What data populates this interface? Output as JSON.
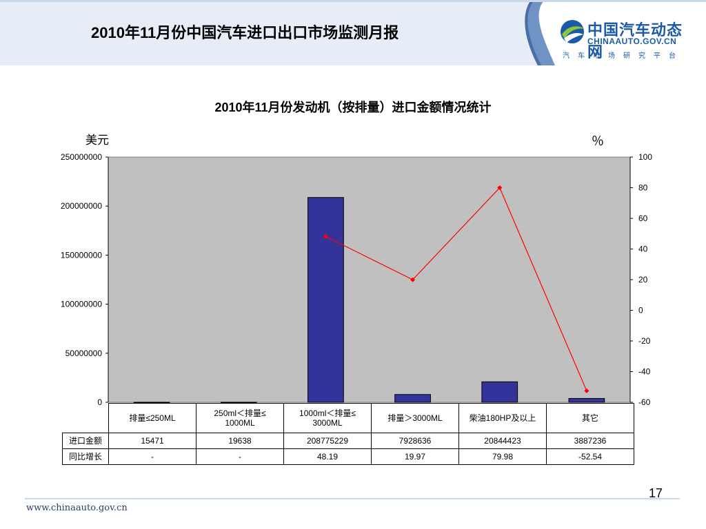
{
  "header": {
    "title": "2010年11月份中国汽车进口出口市场监测月报",
    "logo_name": "中国汽车动态网",
    "logo_domain": "CHINAAUTO.GOV.CN",
    "logo_tagline": "汽车市场研究平台",
    "colors": {
      "band": "#4a6fa5",
      "wave": "#6f93c4",
      "logo": "#1a5aa8"
    }
  },
  "chart_data": {
    "type": "bar",
    "title": "2010年11月份发动机（按排量）进口金额情况统计",
    "y_unit_left": "美元",
    "y_unit_right": "％",
    "categories": [
      "排量≤250ML",
      "250ml＜排量≤1000ML",
      "1000ml＜排量≤3000ML",
      "排量＞3000ML",
      "柴油180HP及以上",
      "其它"
    ],
    "category_lines": [
      [
        "排量≤250ML"
      ],
      [
        "250ml＜排量≤",
        "1000ML"
      ],
      [
        "1000ml＜排量≤",
        "3000ML"
      ],
      [
        "排量＞3000ML"
      ],
      [
        "柴油180HP及以上"
      ],
      [
        "其它"
      ]
    ],
    "series": [
      {
        "name": "进口金额",
        "type": "bar",
        "axis": "left",
        "color": "#333399",
        "values": [
          15471,
          19638,
          208775229,
          7928636,
          20844423,
          3887236
        ]
      },
      {
        "name": "同比增长",
        "type": "line",
        "axis": "right",
        "color": "#ff0000",
        "values": [
          null,
          null,
          48.19,
          19.97,
          79.98,
          -52.54
        ]
      }
    ],
    "table_rows": [
      {
        "label": "进口金额",
        "cells": [
          "15471",
          "19638",
          "208775229",
          "7928636",
          "20844423",
          "3887236"
        ]
      },
      {
        "label": "同比增长",
        "cells": [
          "-",
          "-",
          "48.19",
          "19.97",
          "79.98",
          "-52.54"
        ]
      }
    ],
    "ylim_left": [
      0,
      250000000
    ],
    "ylim_right": [
      -60,
      100
    ],
    "yticks_left": [
      "250000000",
      "200000000",
      "150000000",
      "100000000",
      "50000000",
      "0"
    ],
    "yticks_right": [
      "100",
      "80",
      "60",
      "40",
      "20",
      "0",
      "-20",
      "-40",
      "-60"
    ],
    "plot_background": "#c0c0c0",
    "grid": false,
    "legend": "data-table"
  },
  "footer": {
    "url": "www.chinaauto.gov.cn",
    "page_number": "17"
  }
}
